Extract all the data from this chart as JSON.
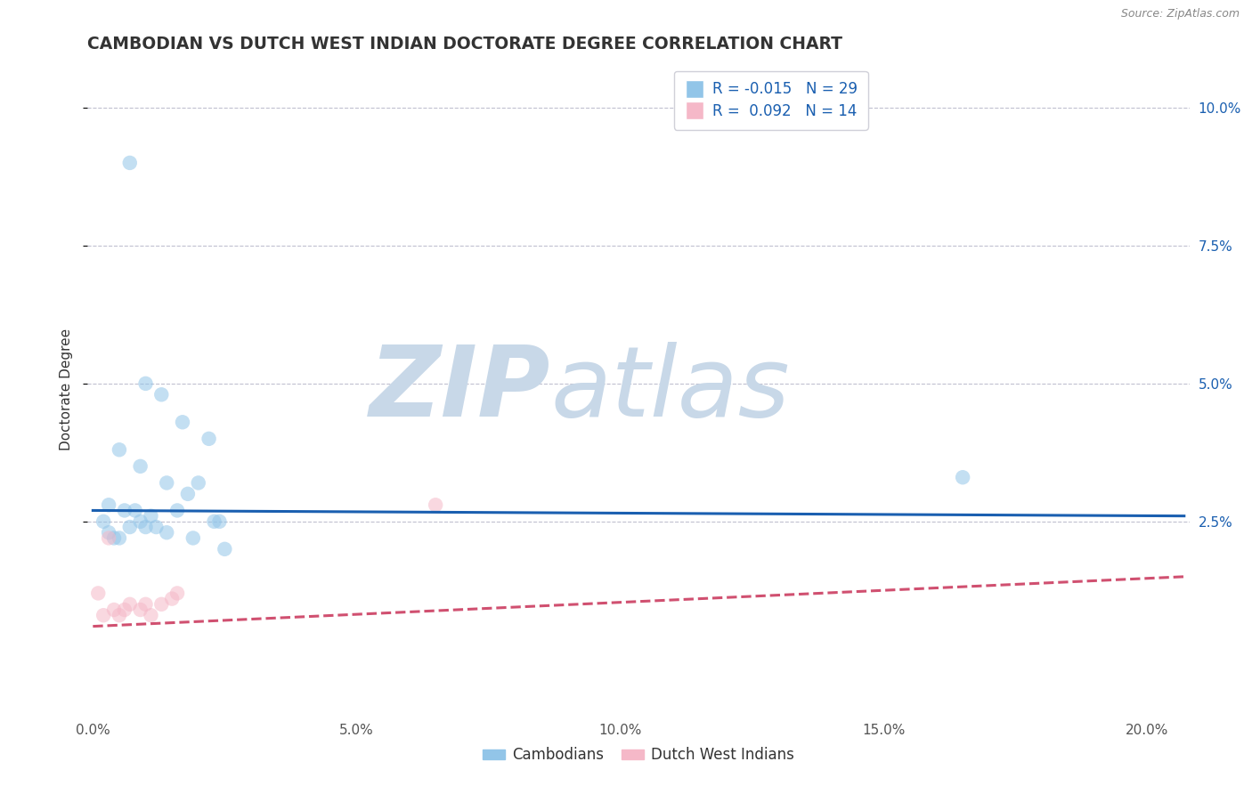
{
  "title": "CAMBODIAN VS DUTCH WEST INDIAN DOCTORATE DEGREE CORRELATION CHART",
  "source_text": "Source: ZipAtlas.com",
  "ylabel_label": "Doctorate Degree",
  "x_ticks": [
    0.0,
    0.05,
    0.1,
    0.15,
    0.2
  ],
  "x_tick_labels": [
    "0.0%",
    "5.0%",
    "10.0%",
    "15.0%",
    "20.0%"
  ],
  "y_ticks": [
    0.025,
    0.05,
    0.075,
    0.1
  ],
  "y_tick_labels": [
    "2.5%",
    "5.0%",
    "7.5%",
    "10.0%"
  ],
  "xlim": [
    -0.001,
    0.208
  ],
  "ylim": [
    -0.01,
    0.108
  ],
  "blue_R": "-0.015",
  "blue_N": "29",
  "pink_R": "0.092",
  "pink_N": "14",
  "legend_label_blue": "Cambodians",
  "legend_label_pink": "Dutch West Indians",
  "blue_color": "#92c5e8",
  "pink_color": "#f5b8c8",
  "blue_line_color": "#1a5fb0",
  "pink_line_color": "#d05070",
  "watermark_zip_color": "#c8d8e8",
  "watermark_atlas_color": "#c8d8e8",
  "background_color": "#ffffff",
  "grid_color": "#c0c0d0",
  "blue_dots_x": [
    0.007,
    0.01,
    0.013,
    0.017,
    0.022,
    0.005,
    0.009,
    0.014,
    0.018,
    0.024,
    0.003,
    0.006,
    0.009,
    0.012,
    0.016,
    0.02,
    0.025,
    0.003,
    0.004,
    0.007,
    0.008,
    0.01,
    0.014,
    0.019,
    0.023,
    0.165,
    0.002,
    0.005,
    0.011
  ],
  "blue_dots_y": [
    0.09,
    0.05,
    0.048,
    0.043,
    0.04,
    0.038,
    0.035,
    0.032,
    0.03,
    0.025,
    0.028,
    0.027,
    0.025,
    0.024,
    0.027,
    0.032,
    0.02,
    0.023,
    0.022,
    0.024,
    0.027,
    0.024,
    0.023,
    0.022,
    0.025,
    0.033,
    0.025,
    0.022,
    0.026
  ],
  "pink_dots_x": [
    0.002,
    0.004,
    0.005,
    0.007,
    0.009,
    0.011,
    0.013,
    0.016,
    0.003,
    0.006,
    0.01,
    0.015,
    0.065,
    0.001
  ],
  "pink_dots_y": [
    0.008,
    0.009,
    0.008,
    0.01,
    0.009,
    0.008,
    0.01,
    0.012,
    0.022,
    0.009,
    0.01,
    0.011,
    0.028,
    0.012
  ],
  "blue_line_x": [
    0.0,
    0.207
  ],
  "blue_line_y": [
    0.027,
    0.026
  ],
  "pink_line_x": [
    0.0,
    0.207
  ],
  "pink_line_y": [
    0.006,
    0.015
  ],
  "dot_size": 140,
  "dot_alpha": 0.55,
  "title_fontsize": 13.5,
  "axis_fontsize": 11,
  "tick_fontsize": 11,
  "legend_fontsize": 12,
  "label_color": "#333333",
  "tick_label_color": "#555555",
  "right_tick_color": "#1a5fb0"
}
